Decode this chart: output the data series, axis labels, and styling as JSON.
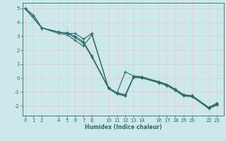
{
  "xlabel": "Humidex (Indice chaleur)",
  "bg_color": "#cce8e8",
  "grid_color": "#e0d0d0",
  "line_color": "#2d6b6b",
  "lines": [
    [
      0,
      5.0,
      1,
      4.5,
      2,
      3.6,
      4,
      3.3,
      5,
      3.2,
      6,
      2.9,
      7,
      2.5,
      8,
      1.5,
      10,
      -0.75,
      11,
      -1.1,
      12,
      -1.25,
      13,
      0.1,
      14,
      0.05,
      16,
      -0.3,
      17,
      -0.5,
      18,
      -0.85,
      19,
      -1.25,
      20,
      -1.3,
      22,
      -2.15,
      23,
      -1.85
    ],
    [
      0,
      5.0,
      2,
      3.6,
      4,
      3.2,
      5,
      3.1,
      6,
      2.7,
      7,
      2.3,
      8,
      3.1,
      10,
      -0.75,
      11,
      -1.15,
      12,
      -1.3,
      13,
      0.05,
      14,
      0.0,
      16,
      -0.35,
      17,
      -0.55,
      18,
      -0.9,
      19,
      -1.3,
      20,
      -1.35,
      22,
      -2.15,
      23,
      -1.9
    ],
    [
      0,
      5.0,
      2,
      3.6,
      4,
      3.3,
      5,
      3.25,
      6,
      3.0,
      7,
      2.6,
      8,
      1.6,
      10,
      -0.7,
      11,
      -1.05,
      12,
      -1.2,
      13,
      0.1,
      14,
      0.05,
      16,
      -0.25,
      17,
      -0.45,
      18,
      -0.8,
      19,
      -1.2,
      20,
      -1.25,
      22,
      -2.1,
      23,
      -1.8
    ],
    [
      0,
      5.0,
      1,
      4.5,
      2,
      3.6,
      4,
      3.3,
      5,
      3.2,
      6,
      3.2,
      7,
      2.8,
      8,
      3.2,
      10,
      -0.75,
      11,
      -1.1,
      12,
      0.45,
      13,
      0.15,
      14,
      0.1,
      16,
      -0.3,
      17,
      -0.5,
      18,
      -0.85,
      19,
      -1.25,
      20,
      -1.3,
      22,
      -2.2,
      23,
      -1.95
    ]
  ],
  "xticks": [
    0,
    1,
    2,
    4,
    5,
    6,
    7,
    8,
    10,
    11,
    12,
    13,
    14,
    16,
    17,
    18,
    19,
    20,
    22,
    23
  ],
  "yticks": [
    -2,
    -1,
    0,
    1,
    2,
    3,
    4,
    5
  ],
  "ylim": [
    -2.7,
    5.4
  ],
  "xlim": [
    -0.3,
    23.8
  ]
}
